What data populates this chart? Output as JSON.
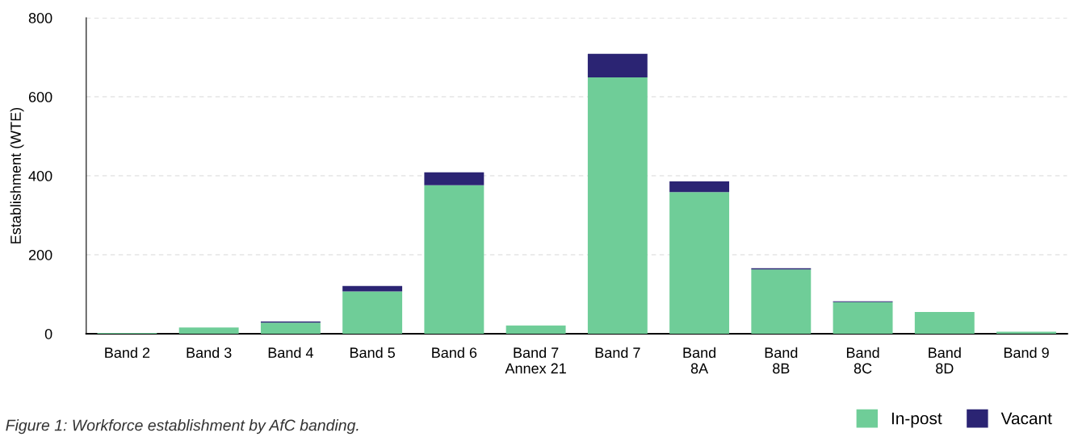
{
  "chart_data": {
    "type": "bar",
    "stacked": true,
    "categories": [
      "Band 2",
      "Band 3",
      "Band 4",
      "Band 5",
      "Band 6",
      "Band 7\nAnnex 21",
      "Band 7",
      "Band\n8A",
      "Band\n8B",
      "Band\n8C",
      "Band\n8D",
      "Band 9"
    ],
    "series": [
      {
        "name": "In-post",
        "color": "#6fcd98",
        "values": [
          2,
          16,
          28,
          107,
          376,
          21,
          649,
          359,
          163,
          80,
          55,
          5
        ]
      },
      {
        "name": "Vacant",
        "color": "#2b2473",
        "values": [
          0,
          0,
          3,
          14,
          33,
          0,
          60,
          27,
          3,
          2,
          0,
          0
        ]
      }
    ],
    "ylabel": "Establishment (WTE)",
    "ylim": [
      0,
      800
    ],
    "yticks": [
      0,
      200,
      400,
      600,
      800
    ],
    "grid": "y",
    "legend": "bottom right",
    "annotations": [
      "Figure 1: Workforce establishment by AfC banding."
    ]
  }
}
